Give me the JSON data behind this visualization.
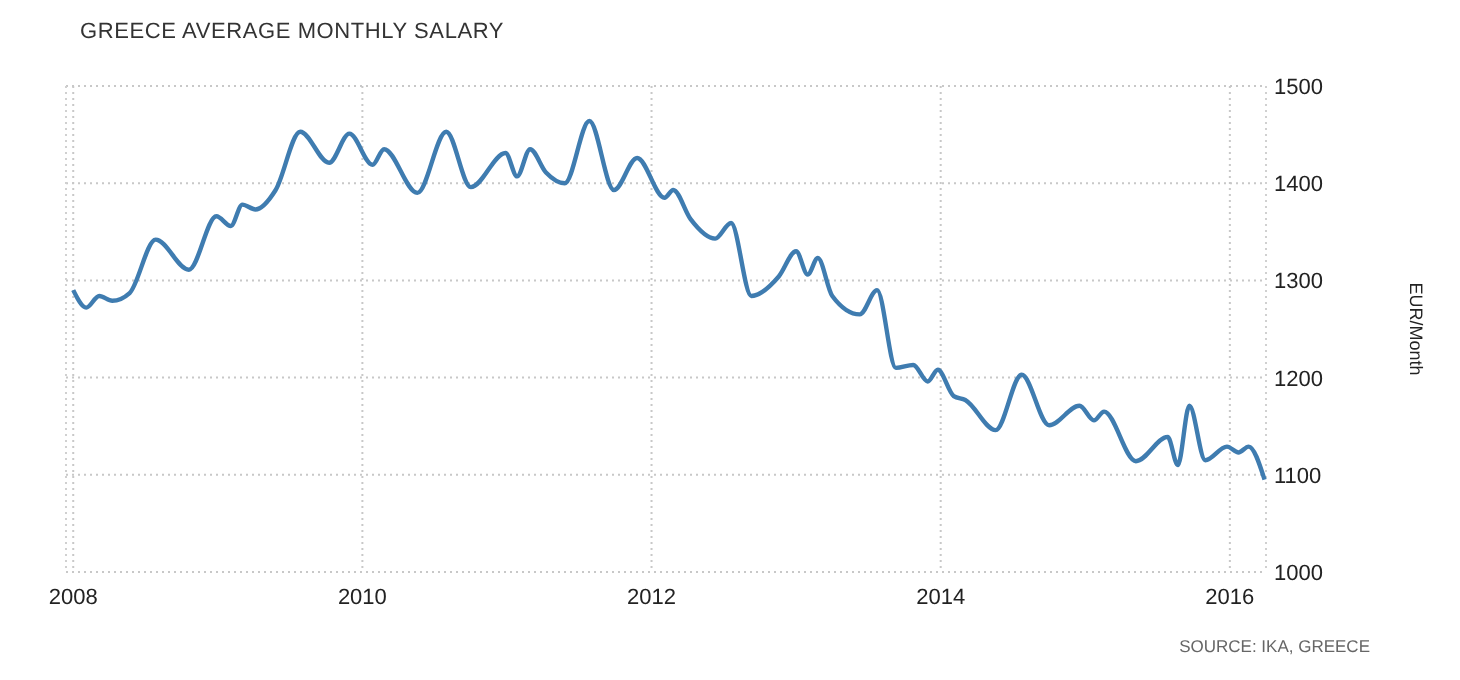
{
  "chart_data": {
    "type": "line",
    "title": "GREECE AVERAGE MONTHLY SALARY",
    "ylabel": "EUR/Month",
    "annotations": [
      "SOURCE: IKA, GREECE"
    ],
    "x": [
      2008.0,
      2008.09,
      2008.18,
      2008.27,
      2008.39,
      2008.57,
      2008.8,
      2008.99,
      2009.09,
      2009.17,
      2009.26,
      2009.4,
      2009.57,
      2009.77,
      2009.91,
      2010.07,
      2010.15,
      2010.38,
      2010.58,
      2010.75,
      2010.99,
      2011.07,
      2011.16,
      2011.27,
      2011.4,
      2011.57,
      2011.74,
      2011.9,
      2012.09,
      2012.15,
      2012.27,
      2012.44,
      2012.55,
      2012.69,
      2012.88,
      2013.0,
      2013.08,
      2013.15,
      2013.25,
      2013.44,
      2013.56,
      2013.69,
      2013.81,
      2013.91,
      2013.98,
      2014.09,
      2014.17,
      2014.38,
      2014.56,
      2014.75,
      2014.96,
      2015.06,
      2015.13,
      2015.35,
      2015.57,
      2015.64,
      2015.72,
      2015.83,
      2015.98,
      2016.06,
      2016.13,
      2016.24
    ],
    "series": [
      {
        "color": "#3f7cb0",
        "values": [
          1290,
          1272,
          1284,
          1279,
          1287,
          1342,
          1311,
          1366,
          1356,
          1378,
          1373,
          1393,
          1453,
          1421,
          1451,
          1419,
          1435,
          1390,
          1453,
          1396,
          1431,
          1407,
          1435,
          1411,
          1400,
          1464,
          1393,
          1426,
          1385,
          1393,
          1363,
          1343,
          1359,
          1284,
          1304,
          1330,
          1306,
          1323,
          1284,
          1265,
          1290,
          1210,
          1213,
          1196,
          1208,
          1181,
          1177,
          1146,
          1203,
          1151,
          1171,
          1156,
          1165,
          1114,
          1139,
          1110,
          1171,
          1115,
          1129,
          1123,
          1129,
          1095
        ]
      }
    ],
    "xlim": [
      2007.95,
      2016.25
    ],
    "xticks": [
      2008,
      2010,
      2012,
      2014,
      2016
    ],
    "ylim": [
      1000,
      1500
    ],
    "yticks": [
      1000,
      1100,
      1200,
      1300,
      1400,
      1500
    ],
    "grid": true,
    "marker": "none",
    "line_style": "solid"
  }
}
